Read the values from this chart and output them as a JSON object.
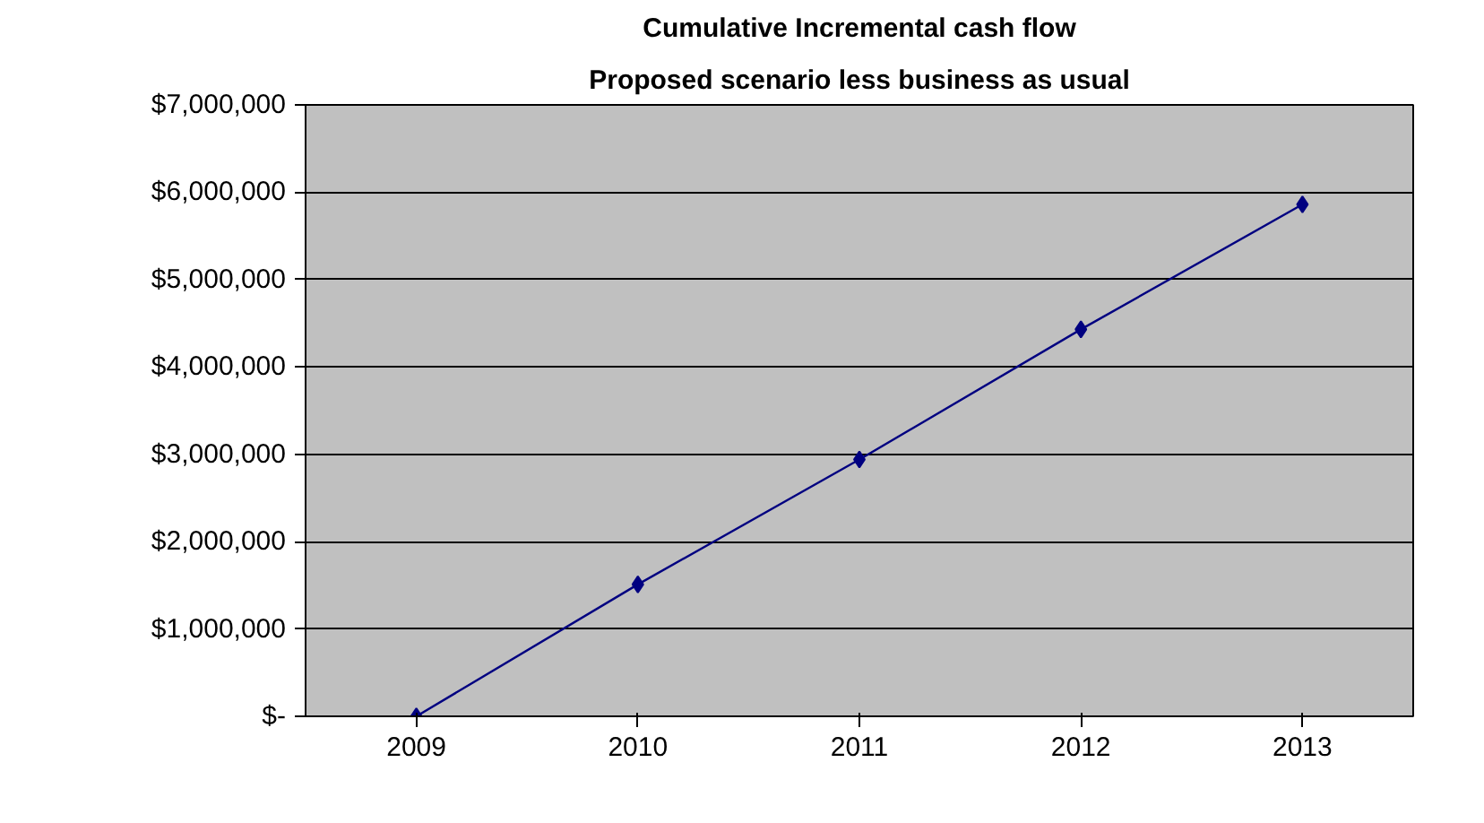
{
  "chart_data": {
    "type": "line",
    "title": "Cumulative Incremental cash flow",
    "subtitle": "Proposed scenario less business as usual",
    "categories": [
      "2009",
      "2010",
      "2011",
      "2012",
      "2013"
    ],
    "series": [
      {
        "color": "#000080",
        "values": [
          0,
          1510000,
          2940000,
          4430000,
          5860000
        ]
      }
    ],
    "ylim": [
      0,
      7000000
    ],
    "yticks": [
      {
        "value": 0,
        "label": "$-"
      },
      {
        "value": 1000000,
        "label": "$1,000,000"
      },
      {
        "value": 2000000,
        "label": "$2,000,000"
      },
      {
        "value": 3000000,
        "label": "$3,000,000"
      },
      {
        "value": 4000000,
        "label": "$4,000,000"
      },
      {
        "value": 5000000,
        "label": "$5,000,000"
      },
      {
        "value": 6000000,
        "label": "$6,000,000"
      },
      {
        "value": 7000000,
        "label": "$7,000,000"
      }
    ],
    "grid": "y",
    "marker": "diamond",
    "line_style": "solid"
  }
}
